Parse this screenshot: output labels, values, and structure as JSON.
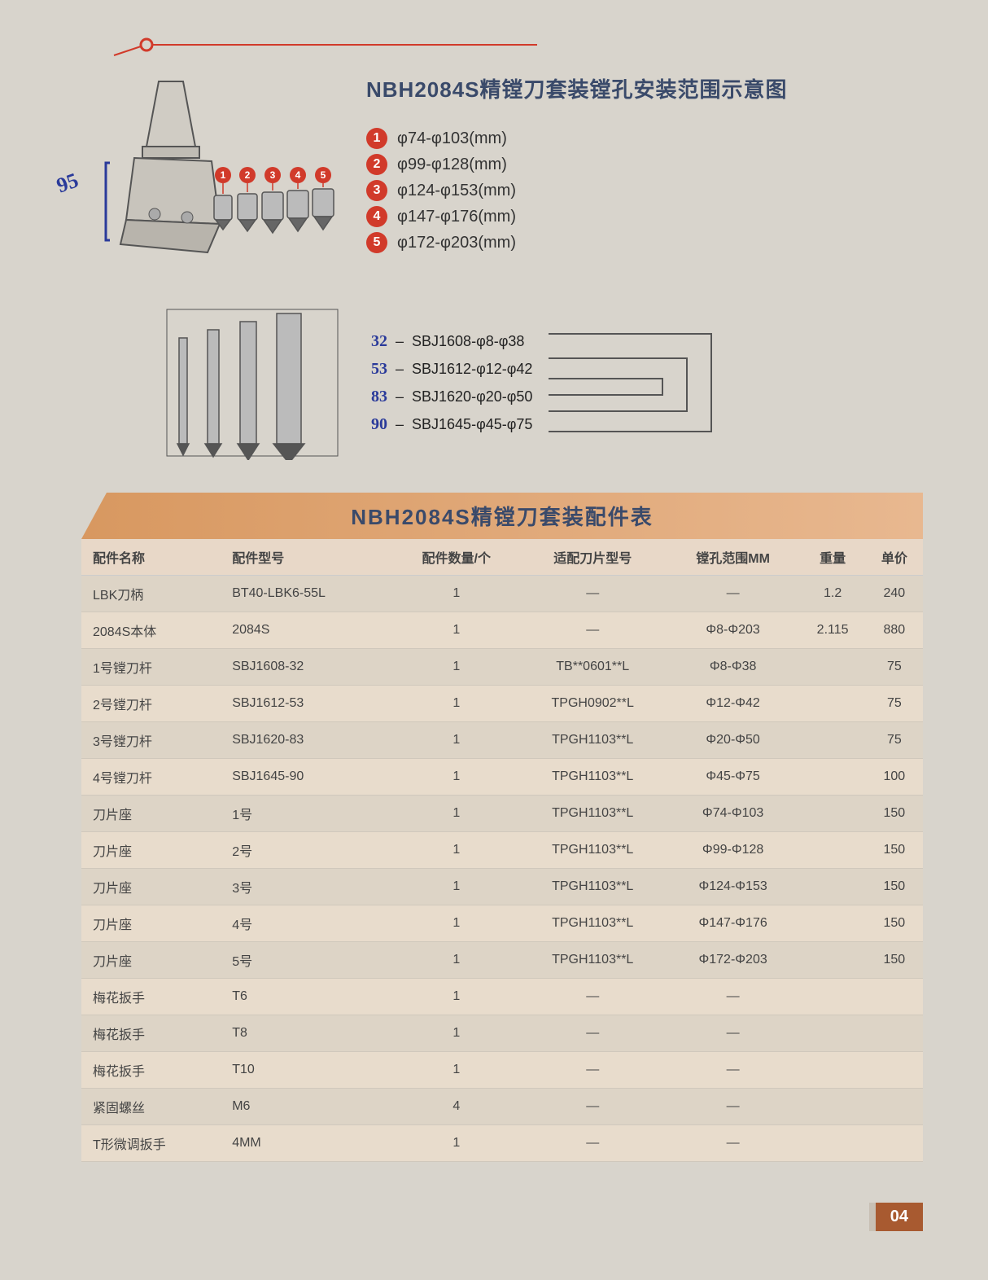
{
  "title": "NBH2084S精镗刀套装镗孔安装范围示意图",
  "handwrite_dim": "95",
  "legend": [
    {
      "num": "1",
      "text": "φ74-φ103(mm)"
    },
    {
      "num": "2",
      "text": "φ99-φ128(mm)"
    },
    {
      "num": "3",
      "text": "φ124-φ153(mm)"
    },
    {
      "num": "4",
      "text": "φ147-φ176(mm)"
    },
    {
      "num": "5",
      "text": "φ172-φ203(mm)"
    }
  ],
  "sbj": [
    {
      "hand": "32",
      "text": "SBJ1608-φ8-φ38"
    },
    {
      "hand": "53",
      "text": "SBJ1612-φ12-φ42"
    },
    {
      "hand": "83",
      "text": "SBJ1620-φ20-φ50"
    },
    {
      "hand": "90",
      "text": "SBJ1645-φ45-φ75"
    }
  ],
  "table_title": "NBH2084S精镗刀套装配件表",
  "columns": [
    "配件名称",
    "配件型号",
    "配件数量/个",
    "适配刀片型号",
    "镗孔范围MM",
    "重量",
    "单价"
  ],
  "rows": [
    [
      "LBK刀柄",
      "BT40-LBK6-55L",
      "1",
      "—",
      "—",
      "1.2",
      "240"
    ],
    [
      "2084S本体",
      "2084S",
      "1",
      "—",
      "Φ8-Φ203",
      "2.115",
      "880"
    ],
    [
      "1号镗刀杆",
      "SBJ1608-32",
      "1",
      "TB**0601**L",
      "Φ8-Φ38",
      "",
      "75"
    ],
    [
      "2号镗刀杆",
      "SBJ1612-53",
      "1",
      "TPGH0902**L",
      "Φ12-Φ42",
      "",
      "75"
    ],
    [
      "3号镗刀杆",
      "SBJ1620-83",
      "1",
      "TPGH1103**L",
      "Φ20-Φ50",
      "",
      "75"
    ],
    [
      "4号镗刀杆",
      "SBJ1645-90",
      "1",
      "TPGH1103**L",
      "Φ45-Φ75",
      "",
      "100"
    ],
    [
      "刀片座",
      "1号",
      "1",
      "TPGH1103**L",
      "Φ74-Φ103",
      "",
      "150"
    ],
    [
      "刀片座",
      "2号",
      "1",
      "TPGH1103**L",
      "Φ99-Φ128",
      "",
      "150"
    ],
    [
      "刀片座",
      "3号",
      "1",
      "TPGH1103**L",
      "Φ124-Φ153",
      "",
      "150"
    ],
    [
      "刀片座",
      "4号",
      "1",
      "TPGH1103**L",
      "Φ147-Φ176",
      "",
      "150"
    ],
    [
      "刀片座",
      "5号",
      "1",
      "TPGH1103**L",
      "Φ172-Φ203",
      "",
      "150"
    ],
    [
      "梅花扳手",
      "T6",
      "1",
      "—",
      "—",
      "",
      ""
    ],
    [
      "梅花扳手",
      "T8",
      "1",
      "—",
      "—",
      "",
      ""
    ],
    [
      "梅花扳手",
      "T10",
      "1",
      "—",
      "—",
      "",
      ""
    ],
    [
      "紧固螺丝",
      "M6",
      "4",
      "—",
      "—",
      "",
      ""
    ],
    [
      "T形微调扳手",
      "4MM",
      "1",
      "—",
      "—",
      "",
      ""
    ]
  ],
  "page_number": "04",
  "colors": {
    "accent_red": "#d13a2a",
    "table_header_bg": "#e8d8c8",
    "table_title_bg": "#d89860",
    "handwrite_blue": "#2a3a9a",
    "page_num_bg": "#a85a30"
  }
}
